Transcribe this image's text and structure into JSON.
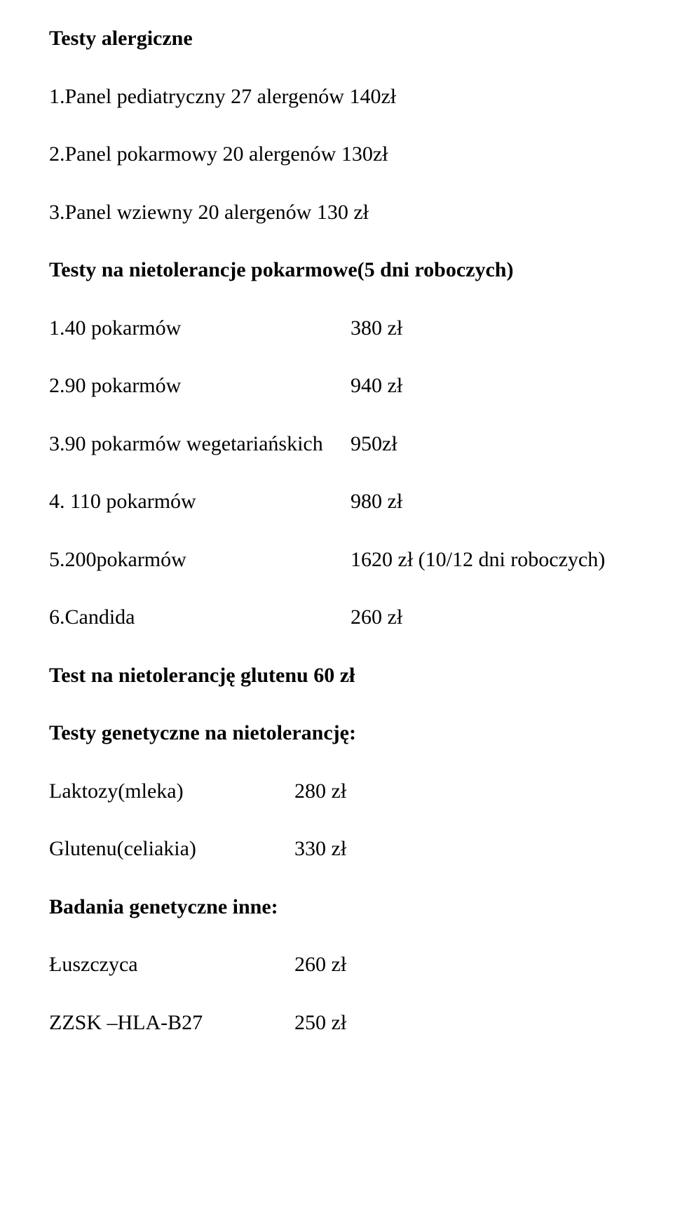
{
  "title": "Testy alergiczne",
  "panel1": "1.Panel pediatryczny 27 alergenów 140zł",
  "panel2": "2.Panel pokarmowy 20 alergenów 130zł",
  "panel3": "3.Panel wziewny 20 alergenów  130 zł",
  "section2_title": "Testy na nietolerancje pokarmowe(5 dni roboczych)",
  "items": [
    {
      "label": "1.40 pokarmów",
      "value": "380 zł"
    },
    {
      "label": "2.90 pokarmów",
      "value": "940 zł"
    },
    {
      "label": "3.90 pokarmów wegetariańskich",
      "value": "950zł"
    },
    {
      "label": "4. 110 pokarmów",
      "value": "980 zł"
    },
    {
      "label": "5.200pokarmów",
      "value": "1620 zł (10/12 dni roboczych)"
    },
    {
      "label": "6.Candida",
      "value": "260 zł"
    }
  ],
  "gluten_line": "Test na nietolerancję glutenu  60 zł",
  "section3_title": "Testy genetyczne na nietolerancję:",
  "genetic": [
    {
      "label": "Laktozy(mleka)",
      "value": "280 zł"
    },
    {
      "label": "Glutenu(celiakia)",
      "value": "330 zł"
    }
  ],
  "section4_title": "Badania genetyczne inne:",
  "other": [
    {
      "label": "Łuszczyca",
      "value": "260 zł"
    },
    {
      "label": "ZZSK –HLA-B27",
      "value": "250 zł"
    }
  ]
}
